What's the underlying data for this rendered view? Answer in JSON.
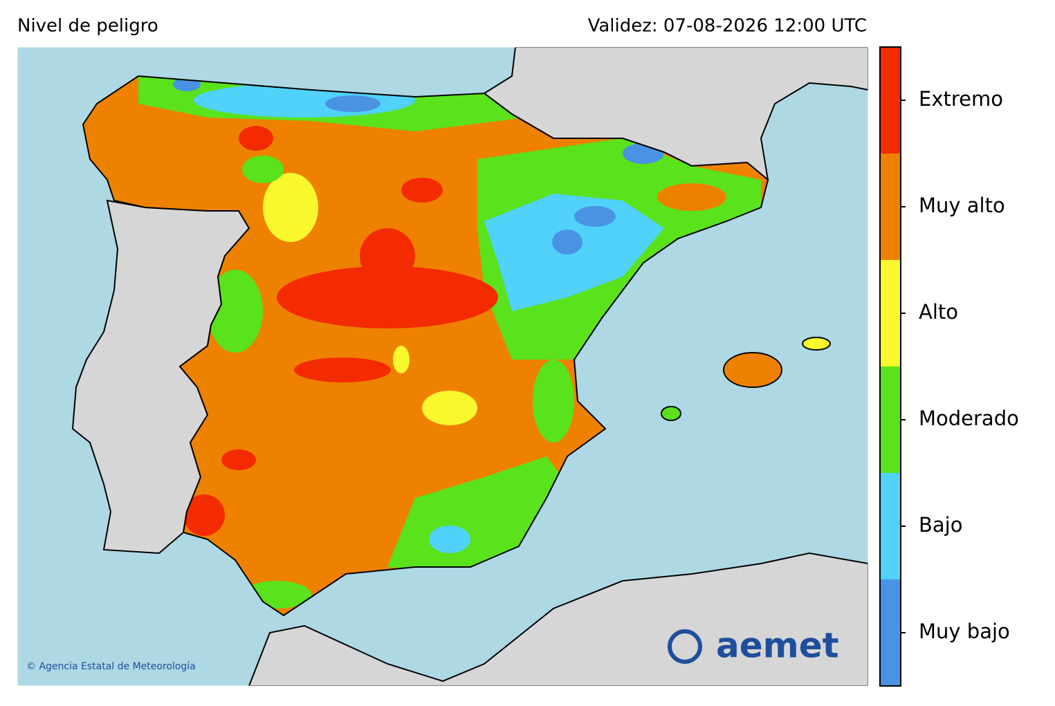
{
  "header": {
    "title": "Nivel de peligro",
    "validity": "Validez: 07-08-2026 12:00 UTC"
  },
  "legend": {
    "levels": [
      {
        "label": "Muy bajo",
        "color": "#4a92e4"
      },
      {
        "label": "Bajo",
        "color": "#50d2fa"
      },
      {
        "label": "Moderado",
        "color": "#5ae21c"
      },
      {
        "label": "Alto",
        "color": "#f8f82c"
      },
      {
        "label": "Muy alto",
        "color": "#ee8200"
      },
      {
        "label": "Extremo",
        "color": "#f42a00"
      }
    ]
  },
  "map": {
    "copyright": "© Agencia Estatal de Meteorología",
    "logo": "aemet"
  }
}
